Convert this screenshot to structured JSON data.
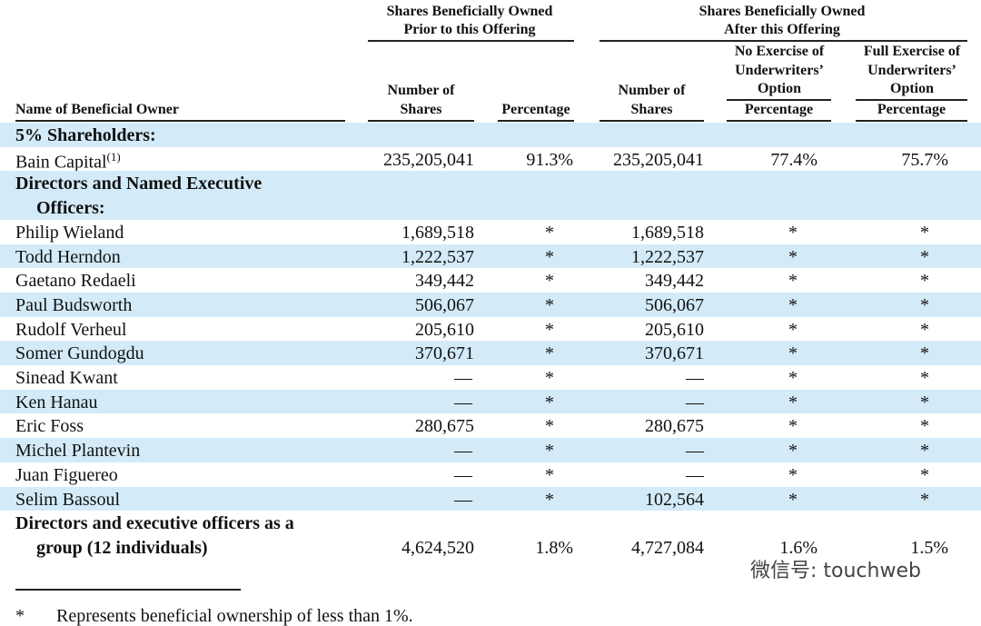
{
  "header": {
    "groups": [
      {
        "lines": [
          "Shares Beneficially Owned",
          "Prior to this Offering"
        ]
      },
      {
        "lines": [
          "Shares Beneficially Owned",
          "After this Offering"
        ]
      }
    ],
    "subgroups": [
      {
        "lines": [
          "No Exercise of",
          "Underwriters’",
          "Option"
        ]
      },
      {
        "lines": [
          "Full Exercise of",
          "Underwriters’",
          "Option"
        ]
      }
    ],
    "columns": [
      {
        "lines": [
          "Name of Beneficial Owner"
        ]
      },
      {
        "lines": [
          "Number of",
          "Shares"
        ]
      },
      {
        "lines": [
          "Percentage"
        ]
      },
      {
        "lines": [
          "Number of",
          "Shares"
        ]
      },
      {
        "lines": [
          "Percentage"
        ]
      },
      {
        "lines": [
          "Percentage"
        ]
      }
    ]
  },
  "table": {
    "rows": [
      {
        "lines": [
          "5% Shareholders:"
        ],
        "bold": true
      },
      {
        "lines": [
          "Bain Capital"
        ],
        "note": "(1)",
        "values": [
          "235,205,041",
          "91.3%",
          "235,205,041",
          "77.4%",
          "75.7%"
        ]
      },
      {
        "lines": [
          "Directors and Named Executive",
          "Officers:"
        ],
        "bold": true
      },
      {
        "lines": [
          "Philip Wieland"
        ],
        "values": [
          "1,689,518",
          "*",
          "1,689,518",
          "*",
          "*"
        ]
      },
      {
        "lines": [
          "Todd Herndon"
        ],
        "values": [
          "1,222,537",
          "*",
          "1,222,537",
          "*",
          "*"
        ]
      },
      {
        "lines": [
          "Gaetano Redaeli"
        ],
        "values": [
          "349,442",
          "*",
          "349,442",
          "*",
          "*"
        ]
      },
      {
        "lines": [
          "Paul Budsworth"
        ],
        "values": [
          "506,067",
          "*",
          "506,067",
          "*",
          "*"
        ]
      },
      {
        "lines": [
          "Rudolf Verheul"
        ],
        "values": [
          "205,610",
          "*",
          "205,610",
          "*",
          "*"
        ]
      },
      {
        "lines": [
          "Somer Gundogdu"
        ],
        "values": [
          "370,671",
          "*",
          "370,671",
          "*",
          "*"
        ]
      },
      {
        "lines": [
          "Sinead Kwant"
        ],
        "values": [
          "—",
          "*",
          "—",
          "*",
          "*"
        ]
      },
      {
        "lines": [
          "Ken Hanau"
        ],
        "values": [
          "—",
          "*",
          "—",
          "*",
          "*"
        ]
      },
      {
        "lines": [
          "Eric Foss"
        ],
        "values": [
          "280,675",
          "*",
          "280,675",
          "*",
          "*"
        ]
      },
      {
        "lines": [
          "Michel Plantevin"
        ],
        "values": [
          "—",
          "*",
          "—",
          "*",
          "*"
        ]
      },
      {
        "lines": [
          "Juan Figuereo"
        ],
        "values": [
          "—",
          "*",
          "—",
          "*",
          "*"
        ]
      },
      {
        "lines": [
          "Selim Bassoul"
        ],
        "values": [
          "—",
          "*",
          "102,564",
          "*",
          "*"
        ]
      },
      {
        "lines": [
          "Directors and executive officers as a",
          "group (12 individuals)"
        ],
        "bold": true,
        "values": [
          "4,624,520",
          "1.8%",
          "4,727,084",
          "1.6%",
          "1.5%"
        ]
      }
    ]
  },
  "footnote": {
    "mark": "*",
    "text": "Represents beneficial ownership of less than 1%."
  },
  "watermark": "微信号: touchweb"
}
